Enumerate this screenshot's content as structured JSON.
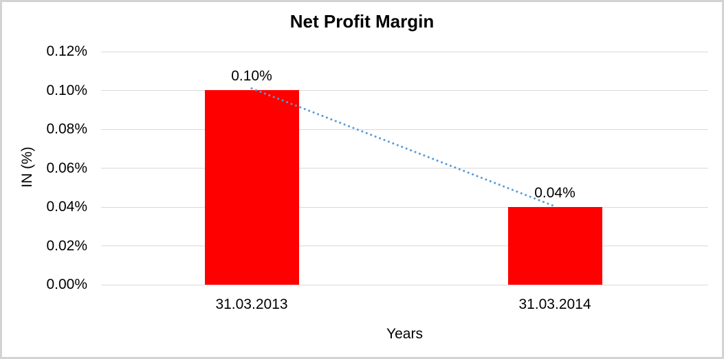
{
  "window": {
    "background": "#FFFFFF",
    "border_color": "#D3D3D3"
  },
  "chart_data": {
    "type": "bar",
    "title": "Net Profit Margin",
    "categories": [
      "31.03.2013",
      "31.03.2014"
    ],
    "values": [
      0.1,
      0.04
    ],
    "data_labels": [
      "0.10%",
      "0.04%"
    ],
    "xlabel": "Years",
    "ylabel": "IN (%)",
    "ylim": [
      0,
      0.12
    ],
    "ytick_step": 0.02,
    "ytick_labels": [
      "0.00%",
      "0.02%",
      "0.04%",
      "0.06%",
      "0.08%",
      "0.10%",
      "0.12%"
    ],
    "grid": true,
    "legend": "none",
    "colors": {
      "bar": "#FF0000",
      "trendline": "#5B9BD5",
      "gridline": "#D9D9D9",
      "text": "#000000"
    },
    "trendline": {
      "style": "dotted",
      "from": {
        "category": "31.03.2013",
        "value": 0.1
      },
      "to": {
        "category": "31.03.2014",
        "value": 0.04
      }
    }
  }
}
